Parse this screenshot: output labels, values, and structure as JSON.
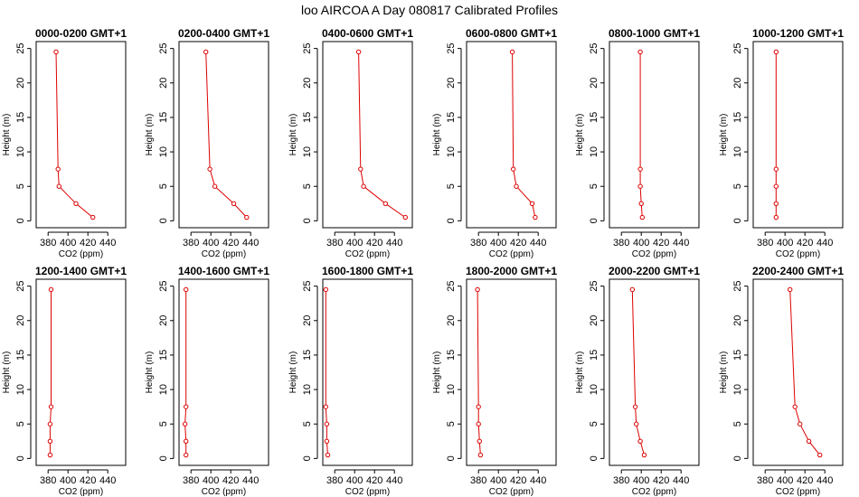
{
  "title": "loo AIRCOA A  Day 080817  Calibrated Profiles",
  "style": {
    "line_color": "#dd0000",
    "point_color": "#dd0000",
    "axis_color": "#000000"
  },
  "chart_data": [
    {
      "type": "line",
      "title": "0000-0200 GMT+1",
      "xlabel": "CO2 (ppm)",
      "ylabel": "Height (m)",
      "xlim": [
        368,
        458
      ],
      "ylim": [
        -1,
        26
      ],
      "xticks": [
        380,
        400,
        420,
        440
      ],
      "yticks": [
        0,
        5,
        10,
        15,
        20,
        25
      ],
      "x": [
        388,
        390,
        391,
        408,
        425
      ],
      "y": [
        24.5,
        7.5,
        5.0,
        2.5,
        0.5
      ]
    },
    {
      "type": "line",
      "title": "0200-0400 GMT+1",
      "xlabel": "CO2 (ppm)",
      "ylabel": "Height (m)",
      "xlim": [
        368,
        458
      ],
      "ylim": [
        -1,
        26
      ],
      "xticks": [
        380,
        400,
        420,
        440
      ],
      "yticks": [
        0,
        5,
        10,
        15,
        20,
        25
      ],
      "x": [
        395,
        399,
        404,
        423,
        436
      ],
      "y": [
        24.5,
        7.5,
        5.0,
        2.5,
        0.5
      ]
    },
    {
      "type": "line",
      "title": "0400-0600 GMT+1",
      "xlabel": "CO2 (ppm)",
      "ylabel": "Height (m)",
      "xlim": [
        368,
        458
      ],
      "ylim": [
        -1,
        26
      ],
      "xticks": [
        380,
        400,
        420,
        440
      ],
      "yticks": [
        0,
        5,
        10,
        15,
        20,
        25
      ],
      "x": [
        404,
        406,
        409,
        431,
        451
      ],
      "y": [
        24.5,
        7.5,
        5.0,
        2.5,
        0.5
      ]
    },
    {
      "type": "line",
      "title": "0600-0800 GMT+1",
      "xlabel": "CO2 (ppm)",
      "ylabel": "Height (m)",
      "xlim": [
        368,
        458
      ],
      "ylim": [
        -1,
        26
      ],
      "xticks": [
        380,
        400,
        420,
        440
      ],
      "yticks": [
        0,
        5,
        10,
        15,
        20,
        25
      ],
      "x": [
        414,
        415,
        418,
        434,
        437
      ],
      "y": [
        24.5,
        7.5,
        5.0,
        2.5,
        0.5
      ]
    },
    {
      "type": "line",
      "title": "0800-1000 GMT+1",
      "xlabel": "CO2 (ppm)",
      "ylabel": "Height (m)",
      "xlim": [
        368,
        458
      ],
      "ylim": [
        -1,
        26
      ],
      "xticks": [
        380,
        400,
        420,
        440
      ],
      "yticks": [
        0,
        5,
        10,
        15,
        20,
        25
      ],
      "x": [
        399,
        399,
        399,
        400,
        401
      ],
      "y": [
        24.5,
        7.5,
        5.0,
        2.5,
        0.5
      ]
    },
    {
      "type": "line",
      "title": "1000-1200 GMT+1",
      "xlabel": "CO2 (ppm)",
      "ylabel": "Height (m)",
      "xlim": [
        368,
        458
      ],
      "ylim": [
        -1,
        26
      ],
      "xticks": [
        380,
        400,
        420,
        440
      ],
      "yticks": [
        0,
        5,
        10,
        15,
        20,
        25
      ],
      "x": [
        391,
        391,
        391,
        391,
        391
      ],
      "y": [
        24.5,
        7.5,
        5.0,
        2.5,
        0.5
      ]
    },
    {
      "type": "line",
      "title": "1200-1400 GMT+1",
      "xlabel": "CO2 (ppm)",
      "ylabel": "Height (m)",
      "xlim": [
        368,
        458
      ],
      "ylim": [
        -1,
        26
      ],
      "xticks": [
        380,
        400,
        420,
        440
      ],
      "yticks": [
        0,
        5,
        10,
        15,
        20,
        25
      ],
      "x": [
        383,
        383,
        382,
        382,
        382
      ],
      "y": [
        24.5,
        7.5,
        5.0,
        2.5,
        0.5
      ]
    },
    {
      "type": "line",
      "title": "1400-1600 GMT+1",
      "xlabel": "CO2 (ppm)",
      "ylabel": "Height (m)",
      "xlim": [
        368,
        458
      ],
      "ylim": [
        -1,
        26
      ],
      "xticks": [
        380,
        400,
        420,
        440
      ],
      "yticks": [
        0,
        5,
        10,
        15,
        20,
        25
      ],
      "x": [
        375,
        375,
        374,
        375,
        375
      ],
      "y": [
        24.5,
        7.5,
        5.0,
        2.5,
        0.5
      ]
    },
    {
      "type": "line",
      "title": "1600-1800 GMT+1",
      "xlabel": "CO2 (ppm)",
      "ylabel": "Height (m)",
      "xlim": [
        368,
        458
      ],
      "ylim": [
        -1,
        26
      ],
      "xticks": [
        380,
        400,
        420,
        440
      ],
      "yticks": [
        0,
        5,
        10,
        15,
        20,
        25
      ],
      "x": [
        371,
        371,
        372,
        372,
        373
      ],
      "y": [
        24.5,
        7.5,
        5.0,
        2.5,
        0.5
      ]
    },
    {
      "type": "line",
      "title": "1800-2000 GMT+1",
      "xlabel": "CO2 (ppm)",
      "ylabel": "Height (m)",
      "xlim": [
        368,
        458
      ],
      "ylim": [
        -1,
        26
      ],
      "xticks": [
        380,
        400,
        420,
        440
      ],
      "yticks": [
        0,
        5,
        10,
        15,
        20,
        25
      ],
      "x": [
        379,
        380,
        380,
        381,
        382
      ],
      "y": [
        24.5,
        7.5,
        5.0,
        2.5,
        0.5
      ]
    },
    {
      "type": "line",
      "title": "2000-2200 GMT+1",
      "xlabel": "CO2 (ppm)",
      "ylabel": "Height (m)",
      "xlim": [
        368,
        458
      ],
      "ylim": [
        -1,
        26
      ],
      "xticks": [
        380,
        400,
        420,
        440
      ],
      "yticks": [
        0,
        5,
        10,
        15,
        20,
        25
      ],
      "x": [
        391,
        394,
        395,
        399,
        403
      ],
      "y": [
        24.5,
        7.5,
        5.0,
        2.5,
        0.5
      ]
    },
    {
      "type": "line",
      "title": "2200-2400 GMT+1",
      "xlabel": "CO2 (ppm)",
      "ylabel": "Height (m)",
      "xlim": [
        368,
        458
      ],
      "ylim": [
        -1,
        26
      ],
      "xticks": [
        380,
        400,
        420,
        440
      ],
      "yticks": [
        0,
        5,
        10,
        15,
        20,
        25
      ],
      "x": [
        405,
        410,
        415,
        424,
        435
      ],
      "y": [
        24.5,
        7.5,
        5.0,
        2.5,
        0.5
      ]
    }
  ]
}
